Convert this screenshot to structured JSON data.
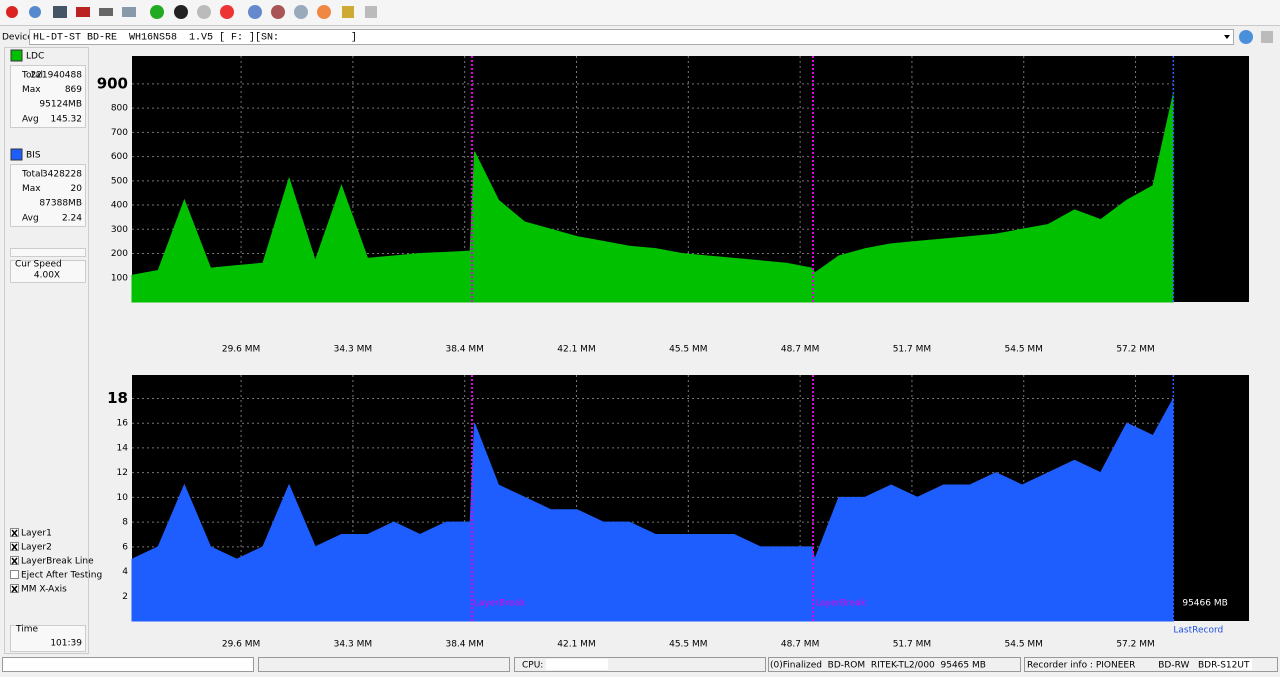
{
  "device": {
    "label": "Device:",
    "value": "HL-DT-ST BD-RE  WH16NS58  1.V5 [ F: ][SN:            ]"
  },
  "left_panel": {
    "ldc_stats": [
      {
        "label": "Total",
        "value": 221940488
      },
      {
        "label": "Max",
        "value": 869
      },
      {
        "value": "95124MB"
      },
      {
        "label": "Avg",
        "value": 145.32
      }
    ],
    "bis_stats": [
      {
        "label": "Total",
        "value": 3428228
      },
      {
        "label": "Max",
        "value": 20
      },
      {
        "value": "87388MB"
      },
      {
        "label": "Avg",
        "value": 2.24
      }
    ],
    "cur_speed": {
      "label": "Cur Speed",
      "value": "4.00X"
    },
    "options": [
      {
        "label": "Layer1",
        "checked": true
      },
      {
        "label": "Layer2",
        "checked": true
      },
      {
        "label": "LayerBreak Line",
        "checked": true
      },
      {
        "label": "Eject After Testing",
        "checked": false
      },
      {
        "label": "MM X-Axis",
        "checked": true
      }
    ],
    "time": {
      "label": "Time",
      "value": "101:39"
    }
  },
  "status_bar": {
    "cpu": "CPU:",
    "disc": "(0)Finalized  BD-ROM  RITEK-TL2/000  95465 MB",
    "recorder": "Recorder info : PIONEER        BD-RW   BDR-S12UT"
  },
  "chart_data": [
    {
      "type": "area",
      "grid": true,
      "x": [
        0,
        2400,
        4800,
        7200,
        9600,
        12000,
        14400,
        16800,
        19200,
        21600,
        24000,
        26400,
        28800,
        31000,
        31400,
        33600,
        36000,
        38400,
        40800,
        43200,
        45600,
        48000,
        50400,
        52800,
        55200,
        57600,
        60000,
        62300,
        62600,
        64800,
        67200,
        69600,
        72000,
        74400,
        76800,
        79200,
        81600,
        84000,
        86400,
        88800,
        91200,
        93600,
        95466
      ],
      "series": [
        {
          "name": "LDC",
          "color": "#00c000",
          "values": [
            110,
            130,
            420,
            140,
            150,
            160,
            510,
            170,
            480,
            180,
            190,
            200,
            205,
            210,
            620,
            420,
            330,
            300,
            270,
            250,
            230,
            220,
            200,
            190,
            180,
            170,
            160,
            140,
            120,
            190,
            220,
            240,
            250,
            260,
            270,
            280,
            300,
            320,
            380,
            340,
            420,
            480,
            860
          ]
        }
      ],
      "xlim": [
        0,
        102400
      ],
      "xticks": [
        {
          "value": 10000,
          "label": "29.6 MM"
        },
        {
          "value": 20250,
          "label": "34.3 MM"
        },
        {
          "value": 30500,
          "label": "38.4 MM"
        },
        {
          "value": 40750,
          "label": "42.1 MM"
        },
        {
          "value": 51000,
          "label": "45.5 MM"
        },
        {
          "value": 61250,
          "label": "48.7 MM"
        },
        {
          "value": 71500,
          "label": "51.7 MM"
        },
        {
          "value": 81750,
          "label": "54.5 MM"
        },
        {
          "value": 92000,
          "label": "57.2 MM"
        }
      ],
      "ylim": [
        0,
        1015
      ],
      "yticks": [
        100,
        200,
        300,
        400,
        500,
        600,
        700,
        800,
        900
      ],
      "layer_breaks": [
        31170,
        62430
      ],
      "last_record": 95466
    },
    {
      "type": "area",
      "grid": true,
      "x": [
        0,
        2400,
        4800,
        7200,
        9600,
        12000,
        14400,
        16800,
        19200,
        21600,
        24000,
        26400,
        28800,
        31000,
        31400,
        33600,
        36000,
        38400,
        40800,
        43200,
        45600,
        48000,
        50400,
        52800,
        55200,
        57600,
        60000,
        62300,
        62600,
        64800,
        67200,
        69600,
        72000,
        74400,
        76800,
        79200,
        81600,
        84000,
        86400,
        88800,
        91200,
        93600,
        95466
      ],
      "series": [
        {
          "name": "BIS",
          "color": "#1e5eff",
          "values": [
            5,
            6,
            11,
            6,
            5,
            6,
            11,
            6,
            7,
            7,
            8,
            7,
            8,
            8,
            16,
            11,
            10,
            9,
            9,
            8,
            8,
            7,
            7,
            7,
            7,
            6,
            6,
            6,
            5,
            10,
            10,
            11,
            10,
            11,
            11,
            12,
            11,
            12,
            13,
            12,
            16,
            15,
            18
          ]
        }
      ],
      "xlim": [
        0,
        102400
      ],
      "xticks": [
        {
          "value": 10000,
          "label": "29.6 MM"
        },
        {
          "value": 20250,
          "label": "34.3 MM"
        },
        {
          "value": 30500,
          "label": "38.4 MM"
        },
        {
          "value": 40750,
          "label": "42.1 MM"
        },
        {
          "value": 51000,
          "label": "45.5 MM"
        },
        {
          "value": 61250,
          "label": "48.7 MM"
        },
        {
          "value": 71500,
          "label": "51.7 MM"
        },
        {
          "value": 81750,
          "label": "54.5 MM"
        },
        {
          "value": 92000,
          "label": "57.2 MM"
        }
      ],
      "ylim": [
        0,
        19.9
      ],
      "yticks": [
        2,
        4,
        6,
        8,
        10,
        12,
        14,
        16,
        18
      ],
      "layer_breaks": [
        31170,
        62430
      ],
      "layer_break_label": "LayerBreak",
      "last_record": 95466,
      "last_record_label": "LastRecord",
      "end_label": "95466 MB"
    }
  ]
}
